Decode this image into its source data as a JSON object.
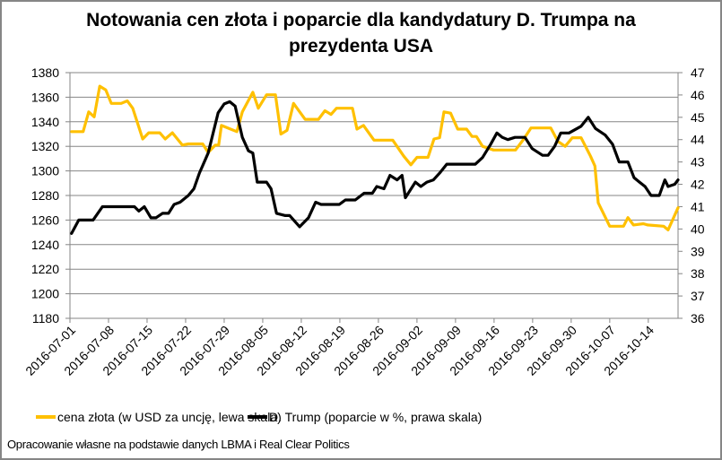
{
  "chart_data": {
    "type": "line",
    "title": "Notowania cen złota i poparcie dla kandydatury D. Trumpa na prezydenta USA",
    "title_lines": [
      "Notowania cen złota i poparcie dla kandydatury D. Trumpa na",
      "prezydenta USA"
    ],
    "xlabel": "",
    "ylabel_left": "",
    "ylabel_right": "",
    "x_tick_labels": [
      "2016-07-01",
      "2016-07-08",
      "2016-07-15",
      "2016-07-22",
      "2016-07-29",
      "2016-08-05",
      "2016-08-12",
      "2016-08-19",
      "2016-08-26",
      "2016-09-02",
      "2016-09-09",
      "2016-09-16",
      "2016-09-23",
      "2016-09-30",
      "2016-10-07",
      "2016-10-14"
    ],
    "x_range_days": [
      0,
      110.4
    ],
    "y_left": {
      "range": [
        1180,
        1380
      ],
      "ticks": [
        1180,
        1200,
        1220,
        1240,
        1260,
        1280,
        1300,
        1320,
        1340,
        1360,
        1380
      ]
    },
    "y_right": {
      "range": [
        36,
        47
      ],
      "ticks": [
        36,
        37,
        38,
        39,
        40,
        41,
        42,
        43,
        44,
        45,
        46,
        47
      ]
    },
    "grid": true,
    "legend_position": "bottom",
    "series": [
      {
        "name": "cena złota (w USD za uncję, lewa skala)",
        "axis": "left",
        "color": "#FFC000",
        "points": [
          [
            0.3,
            1332
          ],
          [
            2.4,
            1332
          ],
          [
            3.4,
            1348
          ],
          [
            4.4,
            1344
          ],
          [
            5.4,
            1369
          ],
          [
            6.5,
            1366
          ],
          [
            7.5,
            1355
          ],
          [
            9.3,
            1355
          ],
          [
            10.4,
            1357
          ],
          [
            11.4,
            1351
          ],
          [
            13.2,
            1326
          ],
          [
            14.3,
            1331
          ],
          [
            16.3,
            1331
          ],
          [
            17.3,
            1326
          ],
          [
            18.6,
            1331
          ],
          [
            20.4,
            1321
          ],
          [
            21.5,
            1322
          ],
          [
            24.1,
            1322
          ],
          [
            25.1,
            1315
          ],
          [
            26.4,
            1321
          ],
          [
            27.0,
            1321
          ],
          [
            27.5,
            1337
          ],
          [
            30.3,
            1332
          ],
          [
            31.3,
            1348
          ],
          [
            33.2,
            1364
          ],
          [
            34.2,
            1351
          ],
          [
            35.7,
            1362
          ],
          [
            37.3,
            1362
          ],
          [
            38.3,
            1330
          ],
          [
            39.4,
            1333
          ],
          [
            40.6,
            1355
          ],
          [
            42.7,
            1342
          ],
          [
            45.1,
            1342
          ],
          [
            46.3,
            1349
          ],
          [
            47.4,
            1346
          ],
          [
            48.4,
            1351
          ],
          [
            51.3,
            1351
          ],
          [
            52.1,
            1334
          ],
          [
            53.3,
            1337
          ],
          [
            55.2,
            1325
          ],
          [
            58.6,
            1325
          ],
          [
            60.6,
            1312
          ],
          [
            61.9,
            1305
          ],
          [
            63.0,
            1311
          ],
          [
            65.0,
            1311
          ],
          [
            66.1,
            1326
          ],
          [
            67.1,
            1327
          ],
          [
            67.9,
            1348
          ],
          [
            69.1,
            1347
          ],
          [
            70.4,
            1334
          ],
          [
            72.0,
            1334
          ],
          [
            73.0,
            1328
          ],
          [
            73.8,
            1328
          ],
          [
            74.9,
            1320
          ],
          [
            76.9,
            1317
          ],
          [
            80.9,
            1317
          ],
          [
            82.4,
            1326
          ],
          [
            83.7,
            1335
          ],
          [
            87.3,
            1335
          ],
          [
            88.6,
            1324
          ],
          [
            89.9,
            1320
          ],
          [
            91.2,
            1327
          ],
          [
            92.8,
            1327
          ],
          [
            94.5,
            1312
          ],
          [
            95.3,
            1304
          ],
          [
            95.9,
            1274
          ],
          [
            98.0,
            1255
          ],
          [
            100.5,
            1255
          ],
          [
            101.3,
            1262
          ],
          [
            102.3,
            1256
          ],
          [
            104.1,
            1257
          ],
          [
            104.9,
            1256
          ],
          [
            107.8,
            1255
          ],
          [
            108.6,
            1252
          ],
          [
            110.4,
            1270
          ]
        ]
      },
      {
        "name": "D. Trump (poparcie w %, prawa skala)",
        "axis": "right",
        "color": "#000000",
        "points": [
          [
            0.3,
            39.8
          ],
          [
            1.6,
            40.4
          ],
          [
            4.2,
            40.4
          ],
          [
            5.9,
            41.0
          ],
          [
            11.7,
            41.0
          ],
          [
            12.5,
            40.8
          ],
          [
            13.5,
            41.0
          ],
          [
            14.7,
            40.5
          ],
          [
            15.6,
            40.5
          ],
          [
            16.8,
            40.7
          ],
          [
            17.9,
            40.7
          ],
          [
            18.9,
            41.1
          ],
          [
            20.0,
            41.2
          ],
          [
            21.5,
            41.5
          ],
          [
            22.5,
            41.8
          ],
          [
            23.5,
            42.5
          ],
          [
            25.1,
            43.4
          ],
          [
            26.9,
            45.2
          ],
          [
            28.0,
            45.6
          ],
          [
            29.0,
            45.7
          ],
          [
            30.0,
            45.5
          ],
          [
            31.3,
            44.1
          ],
          [
            32.4,
            43.5
          ],
          [
            33.2,
            43.4
          ],
          [
            34.0,
            42.1
          ],
          [
            35.7,
            42.1
          ],
          [
            36.5,
            41.8
          ],
          [
            37.5,
            40.7
          ],
          [
            39.1,
            40.6
          ],
          [
            39.9,
            40.6
          ],
          [
            41.7,
            40.1
          ],
          [
            43.3,
            40.5
          ],
          [
            44.6,
            41.2
          ],
          [
            45.6,
            41.1
          ],
          [
            48.9,
            41.1
          ],
          [
            50.0,
            41.3
          ],
          [
            51.8,
            41.3
          ],
          [
            53.4,
            41.6
          ],
          [
            54.9,
            41.6
          ],
          [
            55.7,
            41.9
          ],
          [
            57.0,
            41.8
          ],
          [
            58.1,
            42.4
          ],
          [
            59.4,
            42.2
          ],
          [
            60.3,
            42.4
          ],
          [
            60.9,
            41.4
          ],
          [
            62.7,
            42.1
          ],
          [
            63.7,
            41.9
          ],
          [
            64.8,
            42.1
          ],
          [
            66.0,
            42.2
          ],
          [
            67.1,
            42.5
          ],
          [
            68.4,
            42.9
          ],
          [
            70.0,
            42.9
          ],
          [
            72.0,
            42.9
          ],
          [
            73.6,
            42.9
          ],
          [
            74.9,
            43.2
          ],
          [
            76.4,
            43.8
          ],
          [
            77.5,
            44.3
          ],
          [
            78.5,
            44.1
          ],
          [
            79.5,
            44.0
          ],
          [
            80.8,
            44.1
          ],
          [
            82.6,
            44.1
          ],
          [
            83.9,
            43.6
          ],
          [
            85.8,
            43.3
          ],
          [
            86.8,
            43.3
          ],
          [
            88.0,
            43.7
          ],
          [
            89.1,
            44.3
          ],
          [
            90.6,
            44.3
          ],
          [
            92.8,
            44.6
          ],
          [
            94.1,
            45.0
          ],
          [
            95.4,
            44.5
          ],
          [
            97.2,
            44.2
          ],
          [
            98.5,
            43.8
          ],
          [
            99.7,
            43.0
          ],
          [
            101.3,
            43.0
          ],
          [
            102.4,
            42.3
          ],
          [
            103.4,
            42.1
          ],
          [
            104.4,
            41.9
          ],
          [
            105.5,
            41.5
          ],
          [
            107.0,
            41.5
          ],
          [
            108.0,
            42.2
          ],
          [
            108.6,
            41.9
          ],
          [
            109.8,
            42.0
          ],
          [
            110.4,
            42.2
          ]
        ]
      }
    ]
  },
  "legend": {
    "gold_label": "cena złota (w USD za uncję, lewa skala)",
    "trump_label": "D. Trump (poparcie w %, prawa skala)"
  },
  "source_note": "Opracowanie własne na podstawie danych LBMA i Real Clear Politics"
}
